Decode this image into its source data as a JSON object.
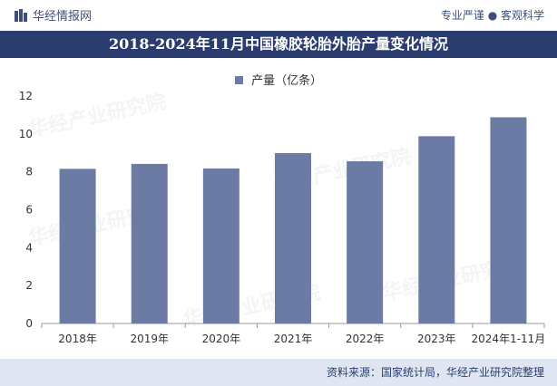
{
  "header": {
    "brand": "华经情报网",
    "slogan": "专业严谨 ● 客观科学"
  },
  "footer": {
    "source": "资料来源：国家统计局，华经产业研究院整理"
  },
  "colors": {
    "bar": "#6b7ba3",
    "title_bg": "#2b3d6e",
    "footer_bg": "#dfe6f1"
  },
  "chart_data": {
    "type": "bar",
    "title": "2018-2024年11月中国橡胶轮胎外胎产量变化情况",
    "legend": [
      "产量（亿条）"
    ],
    "legend_position": "top-center",
    "categories": [
      "2018年",
      "2019年",
      "2020年",
      "2021年",
      "2022年",
      "2023年",
      "2024年1-11月"
    ],
    "series": [
      {
        "name": "产量（亿条）",
        "values": [
          8.16,
          8.42,
          8.18,
          8.99,
          8.56,
          9.88,
          10.88
        ]
      }
    ],
    "ylim": [
      0,
      12
    ],
    "yticks": [
      0,
      2,
      4,
      6,
      8,
      10,
      12
    ],
    "grid": false
  }
}
